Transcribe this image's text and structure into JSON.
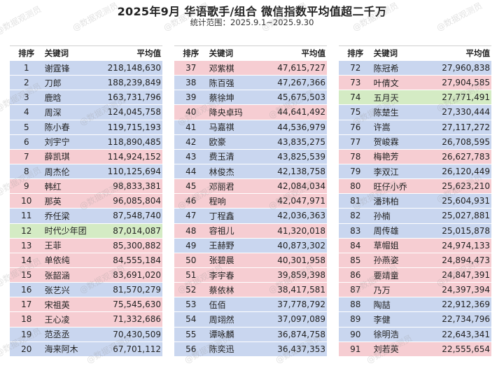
{
  "title": "2025年9月 华语歌手/组合 微信指数平均值超二千万",
  "subtitle": "统计范围：2025.9.1~2025.9.30",
  "headers": {
    "rank": "排序",
    "keyword": "关键词",
    "value": "平均值"
  },
  "watermark": "@数据观测员",
  "colors": {
    "blue": "#c9d6ef",
    "pink": "#f6cdd2",
    "green": "#d4ebc4"
  },
  "panels": [
    {
      "rows": [
        {
          "rank": "1",
          "keyword": "谢霆锋",
          "value": "218,148,630",
          "color": "blue"
        },
        {
          "rank": "2",
          "keyword": "刀郎",
          "value": "188,239,849",
          "color": "blue"
        },
        {
          "rank": "3",
          "keyword": "鹿晗",
          "value": "163,731,796",
          "color": "blue"
        },
        {
          "rank": "4",
          "keyword": "周深",
          "value": "124,045,758",
          "color": "blue"
        },
        {
          "rank": "5",
          "keyword": "陈小春",
          "value": "119,715,193",
          "color": "blue"
        },
        {
          "rank": "6",
          "keyword": "刘宇宁",
          "value": "118,890,485",
          "color": "blue"
        },
        {
          "rank": "7",
          "keyword": "薛凯琪",
          "value": "114,924,152",
          "color": "pink"
        },
        {
          "rank": "8",
          "keyword": "周杰伦",
          "value": "110,125,694",
          "color": "blue"
        },
        {
          "rank": "9",
          "keyword": "韩红",
          "value": "98,833,381",
          "color": "pink"
        },
        {
          "rank": "10",
          "keyword": "那英",
          "value": "96,085,804",
          "color": "pink"
        },
        {
          "rank": "11",
          "keyword": "乔任梁",
          "value": "87,548,740",
          "color": "blue"
        },
        {
          "rank": "12",
          "keyword": "时代少年团",
          "value": "87,014,087",
          "color": "green"
        },
        {
          "rank": "13",
          "keyword": "王菲",
          "value": "85,300,882",
          "color": "pink"
        },
        {
          "rank": "14",
          "keyword": "单依纯",
          "value": "84,555,184",
          "color": "pink"
        },
        {
          "rank": "15",
          "keyword": "张韶涵",
          "value": "83,691,020",
          "color": "pink"
        },
        {
          "rank": "16",
          "keyword": "张艺兴",
          "value": "81,570,279",
          "color": "blue"
        },
        {
          "rank": "17",
          "keyword": "宋祖英",
          "value": "75,545,630",
          "color": "pink"
        },
        {
          "rank": "18",
          "keyword": "王心凌",
          "value": "71,332,686",
          "color": "pink"
        },
        {
          "rank": "19",
          "keyword": "范丞丞",
          "value": "70,430,509",
          "color": "blue"
        },
        {
          "rank": "20",
          "keyword": "海来阿木",
          "value": "67,701,112",
          "color": "blue"
        }
      ]
    },
    {
      "rows": [
        {
          "rank": "37",
          "keyword": "邓紫棋",
          "value": "47,615,727",
          "color": "pink"
        },
        {
          "rank": "38",
          "keyword": "陈百强",
          "value": "47,267,366",
          "color": "blue"
        },
        {
          "rank": "39",
          "keyword": "蔡徐坤",
          "value": "45,675,503",
          "color": "blue"
        },
        {
          "rank": "40",
          "keyword": "降央卓玛",
          "value": "44,641,492",
          "color": "pink"
        },
        {
          "rank": "41",
          "keyword": "马嘉祺",
          "value": "44,536,979",
          "color": "blue"
        },
        {
          "rank": "42",
          "keyword": "欧豪",
          "value": "43,835,275",
          "color": "blue"
        },
        {
          "rank": "43",
          "keyword": "费玉清",
          "value": "43,825,539",
          "color": "blue"
        },
        {
          "rank": "44",
          "keyword": "林俊杰",
          "value": "42,138,758",
          "color": "blue"
        },
        {
          "rank": "45",
          "keyword": "邓丽君",
          "value": "42,084,034",
          "color": "pink"
        },
        {
          "rank": "46",
          "keyword": "程响",
          "value": "42,047,971",
          "color": "pink"
        },
        {
          "rank": "47",
          "keyword": "丁程鑫",
          "value": "42,036,363",
          "color": "blue"
        },
        {
          "rank": "48",
          "keyword": "容祖儿",
          "value": "41,320,018",
          "color": "pink"
        },
        {
          "rank": "49",
          "keyword": "王赫野",
          "value": "40,873,302",
          "color": "blue"
        },
        {
          "rank": "50",
          "keyword": "张碧晨",
          "value": "40,301,958",
          "color": "pink"
        },
        {
          "rank": "51",
          "keyword": "李宇春",
          "value": "39,859,398",
          "color": "pink"
        },
        {
          "rank": "52",
          "keyword": "蔡依林",
          "value": "38,417,581",
          "color": "pink"
        },
        {
          "rank": "53",
          "keyword": "伍佰",
          "value": "37,778,792",
          "color": "blue"
        },
        {
          "rank": "54",
          "keyword": "周翊然",
          "value": "37,097,089",
          "color": "blue"
        },
        {
          "rank": "55",
          "keyword": "谭咏麟",
          "value": "36,874,758",
          "color": "blue"
        },
        {
          "rank": "56",
          "keyword": "陈奕迅",
          "value": "36,437,353",
          "color": "blue"
        }
      ]
    },
    {
      "rows": [
        {
          "rank": "72",
          "keyword": "陈冠希",
          "value": "27,960,838",
          "color": "blue"
        },
        {
          "rank": "73",
          "keyword": "叶倩文",
          "value": "27,904,585",
          "color": "pink"
        },
        {
          "rank": "74",
          "keyword": "五月天",
          "value": "27,771,491",
          "color": "green"
        },
        {
          "rank": "75",
          "keyword": "陈楚生",
          "value": "27,330,444",
          "color": "blue"
        },
        {
          "rank": "76",
          "keyword": "许嵩",
          "value": "27,117,272",
          "color": "blue"
        },
        {
          "rank": "77",
          "keyword": "贺峻霖",
          "value": "26,708,595",
          "color": "blue"
        },
        {
          "rank": "78",
          "keyword": "梅艳芳",
          "value": "26,627,783",
          "color": "pink"
        },
        {
          "rank": "79",
          "keyword": "李双江",
          "value": "26,120,449",
          "color": "blue"
        },
        {
          "rank": "80",
          "keyword": "旺仔小乔",
          "value": "25,623,210",
          "color": "pink"
        },
        {
          "rank": "81",
          "keyword": "潘玮柏",
          "value": "25,604,931",
          "color": "blue"
        },
        {
          "rank": "82",
          "keyword": "孙楠",
          "value": "25,027,881",
          "color": "blue"
        },
        {
          "rank": "83",
          "keyword": "周传雄",
          "value": "25,015,878",
          "color": "blue"
        },
        {
          "rank": "84",
          "keyword": "草帽姐",
          "value": "24,974,133",
          "color": "pink"
        },
        {
          "rank": "85",
          "keyword": "孙燕姿",
          "value": "24,894,473",
          "color": "pink"
        },
        {
          "rank": "86",
          "keyword": "要靖童",
          "value": "24,847,391",
          "color": "pink"
        },
        {
          "rank": "87",
          "keyword": "乃万",
          "value": "24,397,394",
          "color": "pink"
        },
        {
          "rank": "88",
          "keyword": "陶喆",
          "value": "22,912,369",
          "color": "blue"
        },
        {
          "rank": "89",
          "keyword": "李健",
          "value": "22,734,796",
          "color": "blue"
        },
        {
          "rank": "90",
          "keyword": "徐明浩",
          "value": "22,643,341",
          "color": "blue"
        },
        {
          "rank": "91",
          "keyword": "刘若英",
          "value": "22,555,654",
          "color": "pink"
        }
      ]
    }
  ]
}
